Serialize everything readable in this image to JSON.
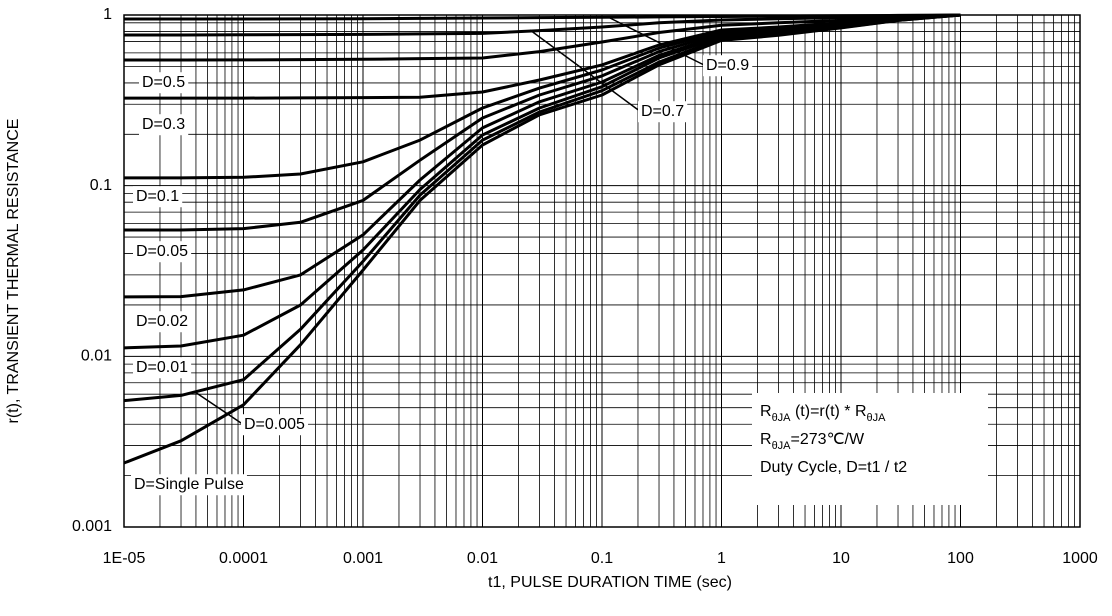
{
  "chart_data": {
    "type": "line",
    "log_x": true,
    "log_y": true,
    "grid": true,
    "minor_grid": true,
    "x_label": "t1, PULSE DURATION TIME (sec)",
    "y_label": "r(t), TRANSIENT THERMAL RESISTANCE",
    "xlim": [
      1e-05,
      1000
    ],
    "ylim": [
      0.001,
      1
    ],
    "xticks": [
      {
        "value": 1e-05,
        "label": "1E-05"
      },
      0.0001,
      0.001,
      0.01,
      0.1,
      1,
      10,
      100,
      1000
    ],
    "yticks": [
      0.001,
      0.01,
      0.1,
      1
    ],
    "x": [
      1e-05,
      3e-05,
      0.0001,
      0.0003,
      0.001,
      0.003,
      0.01,
      0.03,
      0.1,
      0.3,
      1,
      3,
      10,
      30,
      100
    ],
    "series": [
      {
        "name": "D=0.9",
        "color": "#000000",
        "values": [
          0.947,
          0.947,
          0.948,
          0.949,
          0.95,
          0.955,
          0.96,
          0.965,
          0.97,
          0.975,
          0.98,
          0.985,
          0.99,
          0.995,
          1
        ]
      },
      {
        "name": "D=0.7",
        "color": "#000000",
        "values": [
          0.763,
          0.764,
          0.766,
          0.768,
          0.77,
          0.775,
          0.78,
          0.81,
          0.85,
          0.9,
          0.935,
          0.95,
          0.965,
          0.985,
          1
        ]
      },
      {
        "name": "D=0.5",
        "color": "#000000",
        "values": [
          0.545,
          0.545,
          0.546,
          0.548,
          0.55,
          0.555,
          0.56,
          0.61,
          0.695,
          0.79,
          0.87,
          0.9,
          0.93,
          0.97,
          1
        ]
      },
      {
        "name": "D=0.3",
        "color": "#000000",
        "values": [
          0.326,
          0.326,
          0.326,
          0.327,
          0.328,
          0.33,
          0.354,
          0.416,
          0.51,
          0.667,
          0.817,
          0.85,
          0.9,
          0.96,
          1
        ]
      },
      {
        "name": "D=0.1",
        "color": "#000000",
        "values": [
          0.111,
          0.111,
          0.112,
          0.117,
          0.138,
          0.185,
          0.285,
          0.373,
          0.476,
          0.64,
          0.8,
          0.83,
          0.88,
          0.95,
          1
        ]
      },
      {
        "name": "D=0.05",
        "color": "#000000",
        "values": [
          0.055,
          0.055,
          0.056,
          0.061,
          0.082,
          0.141,
          0.249,
          0.34,
          0.44,
          0.61,
          0.78,
          0.82,
          0.87,
          0.94,
          1
        ]
      },
      {
        "name": "D=0.02",
        "color": "#000000",
        "values": [
          0.0223,
          0.0224,
          0.0245,
          0.03,
          0.0515,
          0.108,
          0.218,
          0.31,
          0.405,
          0.58,
          0.76,
          0.8,
          0.86,
          0.94,
          1
        ]
      },
      {
        "name": "D=0.01",
        "color": "#000000",
        "values": [
          0.0112,
          0.0115,
          0.0133,
          0.02,
          0.042,
          0.095,
          0.198,
          0.285,
          0.38,
          0.56,
          0.75,
          0.79,
          0.85,
          0.935,
          1
        ]
      },
      {
        "name": "D=0.005",
        "color": "#000000",
        "values": [
          0.0055,
          0.0059,
          0.0073,
          0.0144,
          0.036,
          0.088,
          0.185,
          0.27,
          0.36,
          0.53,
          0.73,
          0.775,
          0.845,
          0.93,
          1
        ]
      },
      {
        "name": "D=Single Pulse",
        "color": "#000000",
        "values": [
          0.00237,
          0.0032,
          0.0052,
          0.0117,
          0.032,
          0.082,
          0.173,
          0.26,
          0.34,
          0.51,
          0.71,
          0.76,
          0.84,
          0.93,
          1
        ]
      }
    ],
    "note_lines": [
      [
        {
          "text": "R"
        },
        {
          "text": "θJA",
          "sub": true
        },
        {
          "text": " (t)=r(t) * R"
        },
        {
          "text": "θJA",
          "sub": true
        }
      ],
      [
        {
          "text": "R"
        },
        {
          "text": "θJA",
          "sub": true
        },
        {
          "text": "=273℃/W"
        }
      ],
      [
        {
          "text": "Duty Cycle, D=t1 /  t2"
        }
      ]
    ]
  }
}
